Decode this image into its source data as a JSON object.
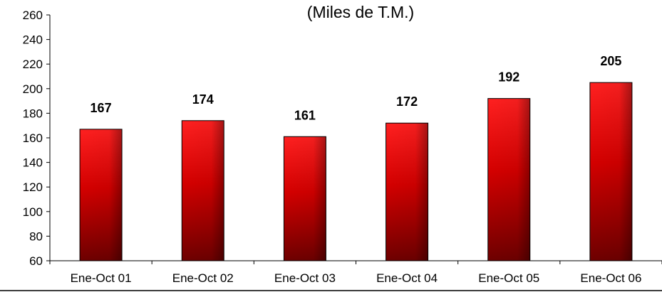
{
  "chart_data": {
    "type": "bar",
    "title": "(Miles de T.M.)",
    "categories": [
      "Ene-Oct 01",
      "Ene-Oct 02",
      "Ene-Oct 03",
      "Ene-Oct 04",
      "Ene-Oct 05",
      "Ene-Oct 06"
    ],
    "values": [
      167,
      174,
      161,
      172,
      192,
      205
    ],
    "data_labels": [
      "167",
      "174",
      "161",
      "172",
      "192",
      "205"
    ],
    "ylim": [
      60,
      260
    ],
    "yticks": [
      60,
      80,
      100,
      120,
      140,
      160,
      180,
      200,
      220,
      240,
      260
    ],
    "grid": false,
    "legend": "none",
    "colors": {
      "bar_light": "#ff1a1a",
      "bar_dark": "#7a0000",
      "axis": "#000000"
    }
  }
}
